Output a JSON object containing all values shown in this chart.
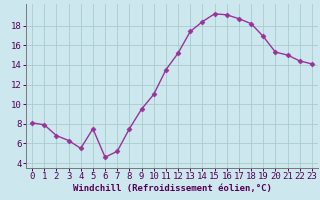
{
  "x": [
    0,
    1,
    2,
    3,
    4,
    5,
    6,
    7,
    8,
    9,
    10,
    11,
    12,
    13,
    14,
    15,
    16,
    17,
    18,
    19,
    20,
    21,
    22,
    23
  ],
  "y": [
    8.1,
    7.9,
    6.8,
    6.3,
    5.5,
    7.5,
    4.6,
    5.2,
    7.5,
    9.5,
    11.0,
    13.5,
    15.2,
    17.4,
    18.4,
    19.2,
    19.1,
    18.7,
    18.2,
    16.9,
    15.3,
    15.0,
    14.4,
    14.1
  ],
  "line_color": "#993399",
  "marker": "D",
  "marker_size": 2.5,
  "line_width": 1.0,
  "bg_color": "#cce8ee",
  "grid_color": "#aacccc",
  "xlabel": "Windchill (Refroidissement éolien,°C)",
  "xlabel_fontsize": 6.5,
  "tick_fontsize": 6.5,
  "ylim": [
    3.5,
    20.2
  ],
  "xlim": [
    -0.5,
    23.5
  ],
  "xticks": [
    0,
    1,
    2,
    3,
    4,
    5,
    6,
    7,
    8,
    9,
    10,
    11,
    12,
    13,
    14,
    15,
    16,
    17,
    18,
    19,
    20,
    21,
    22,
    23
  ],
  "yticks": [
    4,
    6,
    8,
    10,
    12,
    14,
    16,
    18
  ]
}
